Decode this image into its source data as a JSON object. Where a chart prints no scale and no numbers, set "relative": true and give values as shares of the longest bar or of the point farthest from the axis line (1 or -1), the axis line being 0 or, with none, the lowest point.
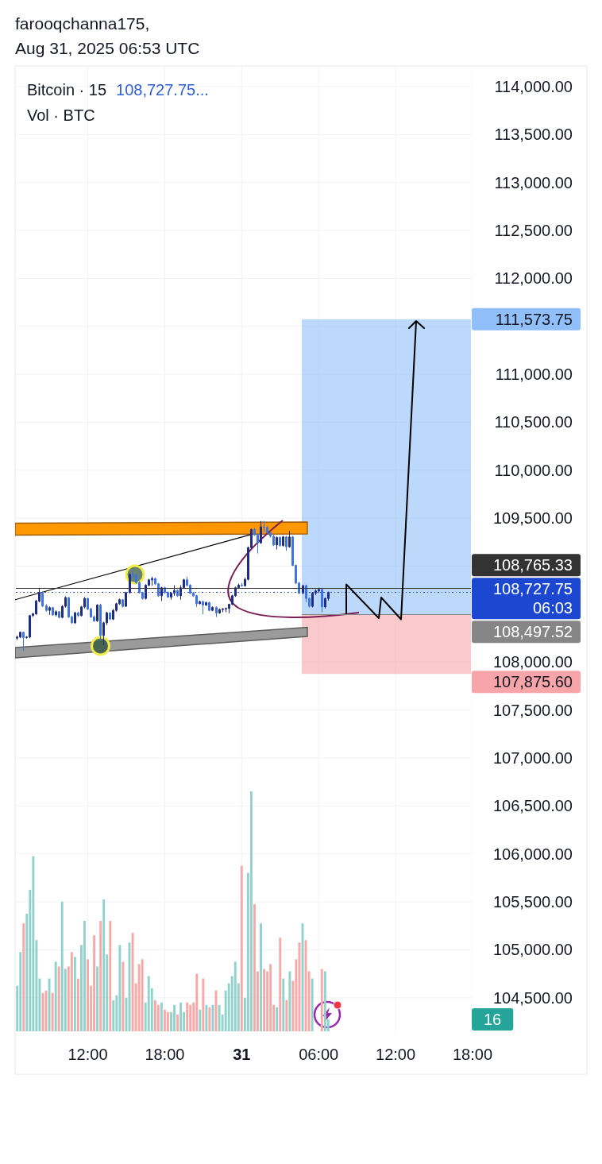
{
  "chart_data": [
    {
      "type": "candlestick",
      "title": "Bitcoin · 15",
      "subtitle": "108,727.75...",
      "grid": true,
      "annotations": [
        "farooqchanna175,",
        "Aug 31, 2025 06:53 UTC"
      ],
      "xlim": [
        "2025-08-30T06:20",
        "2025-08-31T18:00"
      ],
      "xticks": [
        {
          "value": "2025-08-30T12:00",
          "label": "12:00"
        },
        {
          "value": "2025-08-30T18:00",
          "label": "18:00"
        },
        {
          "value": "2025-08-31T00:00",
          "label": "31"
        },
        {
          "value": "2025-08-31T06:00",
          "label": "06:00"
        },
        {
          "value": "2025-08-31T12:00",
          "label": "12:00"
        },
        {
          "value": "2025-08-31T18:00",
          "label": "18:00"
        }
      ],
      "ylim": [
        104150,
        114215
      ],
      "yticks": [
        {
          "value": 104500,
          "label": "104,500.00"
        },
        {
          "value": 105000,
          "label": "105,000.00"
        },
        {
          "value": 105500,
          "label": "105,500.00"
        },
        {
          "value": 106000,
          "label": "106,000.00"
        },
        {
          "value": 106500,
          "label": "106,500.00"
        },
        {
          "value": 107000,
          "label": "107,000.00"
        },
        {
          "value": 107500,
          "label": "107,500.00"
        },
        {
          "value": 108000,
          "label": "108,000.00"
        },
        {
          "value": 108500,
          "label": null
        },
        {
          "value": 109000,
          "label": null
        },
        {
          "value": 109500,
          "label": "109,500.00"
        },
        {
          "value": 110000,
          "label": "110,000.00"
        },
        {
          "value": 110500,
          "label": "110,500.00"
        },
        {
          "value": 111000,
          "label": "111,000.00"
        },
        {
          "value": 111500,
          "label": null
        },
        {
          "value": 112000,
          "label": "112,000.00"
        },
        {
          "value": 112500,
          "label": "112,500.00"
        },
        {
          "value": 113000,
          "label": "113,000.00"
        },
        {
          "value": 113500,
          "label": "113,500.00"
        },
        {
          "value": 114000,
          "label": "114,000.00"
        }
      ],
      "x": [
        "2025-08-30T06:30",
        "2025-08-30T06:45",
        "2025-08-30T07:00",
        "2025-08-30T07:15",
        "2025-08-30T07:30",
        "2025-08-30T07:45",
        "2025-08-30T08:00",
        "2025-08-30T08:15",
        "2025-08-30T08:30",
        "2025-08-30T08:45",
        "2025-08-30T09:00",
        "2025-08-30T09:15",
        "2025-08-30T09:30",
        "2025-08-30T09:45",
        "2025-08-30T10:00",
        "2025-08-30T10:15",
        "2025-08-30T10:30",
        "2025-08-30T10:45",
        "2025-08-30T11:00",
        "2025-08-30T11:15",
        "2025-08-30T11:30",
        "2025-08-30T11:45",
        "2025-08-30T12:00",
        "2025-08-30T12:15",
        "2025-08-30T12:30",
        "2025-08-30T12:45",
        "2025-08-30T13:00",
        "2025-08-30T13:15",
        "2025-08-30T13:30",
        "2025-08-30T13:45",
        "2025-08-30T14:00",
        "2025-08-30T14:15",
        "2025-08-30T14:30",
        "2025-08-30T14:45",
        "2025-08-30T15:00",
        "2025-08-30T15:15",
        "2025-08-30T15:30",
        "2025-08-30T15:45",
        "2025-08-30T16:00",
        "2025-08-30T16:15",
        "2025-08-30T16:30",
        "2025-08-30T16:45",
        "2025-08-30T17:00",
        "2025-08-30T17:15",
        "2025-08-30T17:30",
        "2025-08-30T17:45",
        "2025-08-30T18:00",
        "2025-08-30T18:15",
        "2025-08-30T18:30",
        "2025-08-30T18:45",
        "2025-08-30T19:00",
        "2025-08-30T19:15",
        "2025-08-30T19:30",
        "2025-08-30T19:45",
        "2025-08-30T20:00",
        "2025-08-30T20:15",
        "2025-08-30T20:30",
        "2025-08-30T20:45",
        "2025-08-30T21:00",
        "2025-08-30T21:15",
        "2025-08-30T21:30",
        "2025-08-30T21:45",
        "2025-08-30T22:00",
        "2025-08-30T22:15",
        "2025-08-30T22:30",
        "2025-08-30T22:45",
        "2025-08-30T23:00",
        "2025-08-30T23:15",
        "2025-08-30T23:30",
        "2025-08-30T23:45",
        "2025-08-31T00:00",
        "2025-08-31T00:15",
        "2025-08-31T00:30",
        "2025-08-31T00:45",
        "2025-08-31T01:00",
        "2025-08-31T01:15",
        "2025-08-31T01:30",
        "2025-08-31T01:45",
        "2025-08-31T02:00",
        "2025-08-31T02:15",
        "2025-08-31T02:30",
        "2025-08-31T02:45",
        "2025-08-31T03:00",
        "2025-08-31T03:15",
        "2025-08-31T03:30",
        "2025-08-31T03:45",
        "2025-08-31T04:00",
        "2025-08-31T04:15",
        "2025-08-31T04:30",
        "2025-08-31T04:45",
        "2025-08-31T05:00",
        "2025-08-31T05:15",
        "2025-08-31T05:30",
        "2025-08-31T05:45",
        "2025-08-31T06:00",
        "2025-08-31T06:15",
        "2025-08-31T06:30",
        "2025-08-31T06:45"
      ],
      "ohlc": [
        [
          108249,
          108277,
          108230,
          108260
        ],
        [
          108260,
          108318,
          108249,
          108310
        ],
        [
          108310,
          108316,
          108117,
          108255
        ],
        [
          108255,
          108271,
          108244,
          108260
        ],
        [
          108260,
          108492,
          108249,
          108484
        ],
        [
          108484,
          108512,
          108470,
          108503
        ],
        [
          108503,
          108650,
          108492,
          108636
        ],
        [
          108636,
          108774,
          108622,
          108719
        ],
        [
          108719,
          108733,
          108575,
          108586
        ],
        [
          108586,
          108603,
          108525,
          108539
        ],
        [
          108539,
          108581,
          108492,
          108567
        ],
        [
          108567,
          108575,
          108484,
          108492
        ],
        [
          108492,
          108539,
          108476,
          108525
        ],
        [
          108525,
          108531,
          108456,
          108465
        ],
        [
          108465,
          108592,
          108456,
          108581
        ],
        [
          108581,
          108685,
          108567,
          108672
        ],
        [
          108672,
          108677,
          108459,
          108470
        ],
        [
          108470,
          108484,
          108398,
          108409
        ],
        [
          108409,
          108525,
          108398,
          108512
        ],
        [
          108512,
          108525,
          108470,
          108484
        ],
        [
          108484,
          108586,
          108476,
          108575
        ],
        [
          108575,
          108677,
          108559,
          108663
        ],
        [
          108663,
          108669,
          108542,
          108553
        ],
        [
          108553,
          108564,
          108459,
          108470
        ],
        [
          108470,
          108484,
          108420,
          108429
        ],
        [
          108429,
          108603,
          108420,
          108594
        ],
        [
          108594,
          108608,
          108227,
          108277
        ],
        [
          108277,
          108420,
          108177,
          108409
        ],
        [
          108409,
          108525,
          108387,
          108512
        ],
        [
          108512,
          108520,
          108437,
          108448
        ],
        [
          108448,
          108553,
          108437,
          108539
        ],
        [
          108539,
          108619,
          108525,
          108608
        ],
        [
          108608,
          108663,
          108597,
          108650
        ],
        [
          108650,
          108658,
          108569,
          108581
        ],
        [
          108581,
          108733,
          108575,
          108724
        ],
        [
          108724,
          108926,
          108713,
          108912
        ],
        [
          108912,
          108939,
          108879,
          108906
        ],
        [
          108906,
          108917,
          108815,
          108829
        ],
        [
          108829,
          108843,
          108713,
          108724
        ],
        [
          108724,
          108733,
          108650,
          108663
        ],
        [
          108663,
          108812,
          108652,
          108801
        ],
        [
          108801,
          108868,
          108790,
          108857
        ],
        [
          108857,
          108890,
          108796,
          108870
        ],
        [
          108870,
          108879,
          108801,
          108815
        ],
        [
          108815,
          108824,
          108680,
          108691
        ],
        [
          108691,
          108785,
          108636,
          108774
        ],
        [
          108774,
          108785,
          108713,
          108724
        ],
        [
          108724,
          108735,
          108669,
          108677
        ],
        [
          108677,
          108730,
          108650,
          108719
        ],
        [
          108719,
          108801,
          108691,
          108746
        ],
        [
          108746,
          108757,
          108680,
          108691
        ],
        [
          108691,
          108801,
          108650,
          108774
        ],
        [
          108774,
          108868,
          108763,
          108857
        ],
        [
          108857,
          108890,
          108790,
          108801
        ],
        [
          108801,
          108812,
          108708,
          108719
        ],
        [
          108719,
          108730,
          108680,
          108691
        ],
        [
          108691,
          108702,
          108575,
          108608
        ],
        [
          108608,
          108641,
          108603,
          108630
        ],
        [
          108630,
          108641,
          108498,
          108594
        ],
        [
          108594,
          108630,
          108586,
          108619
        ],
        [
          108619,
          108630,
          108531,
          108539
        ],
        [
          108539,
          108581,
          108531,
          108569
        ],
        [
          108569,
          108581,
          108470,
          108512
        ],
        [
          108512,
          108559,
          108503,
          108547
        ],
        [
          108547,
          108564,
          108520,
          108553
        ],
        [
          108553,
          108569,
          108520,
          108559
        ],
        [
          108559,
          108608,
          108509,
          108603
        ],
        [
          108603,
          108702,
          108592,
          108691
        ],
        [
          108691,
          108785,
          108680,
          108774
        ],
        [
          108774,
          108818,
          108763,
          108801
        ],
        [
          108801,
          108824,
          108785,
          108796
        ],
        [
          108796,
          108879,
          108785,
          108862
        ],
        [
          108862,
          109205,
          108851,
          109193
        ],
        [
          109193,
          109392,
          109182,
          109381
        ],
        [
          109381,
          109398,
          109315,
          109326
        ],
        [
          109326,
          109340,
          109133,
          109243
        ],
        [
          109243,
          109470,
          109232,
          109409
        ],
        [
          109409,
          109470,
          109354,
          109403
        ],
        [
          109403,
          109420,
          109337,
          109348
        ],
        [
          109348,
          109359,
          109298,
          109312
        ],
        [
          109312,
          109326,
          109210,
          109221
        ],
        [
          109221,
          109309,
          109174,
          109298
        ],
        [
          109298,
          109309,
          109202,
          109216
        ],
        [
          109216,
          109315,
          109202,
          109304
        ],
        [
          109304,
          109315,
          109160,
          109202
        ],
        [
          109202,
          109367,
          109193,
          109304
        ],
        [
          109304,
          109315,
          109000,
          109008
        ],
        [
          109008,
          109017,
          108812,
          108824
        ],
        [
          108824,
          108835,
          108708,
          108719
        ],
        [
          108719,
          108807,
          108708,
          108796
        ],
        [
          108796,
          108807,
          108622,
          108663
        ],
        [
          108663,
          108674,
          108569,
          108581
        ],
        [
          108581,
          108730,
          108569,
          108719
        ],
        [
          108719,
          108757,
          108697,
          108741
        ],
        [
          108741,
          108774,
          108719,
          108757
        ],
        [
          108757,
          108774,
          108520,
          108575
        ],
        [
          108575,
          108674,
          108559,
          108663
        ],
        [
          108663,
          108735,
          108641,
          108727.75
        ]
      ],
      "colors": [
        "#1e2c84",
        "#1e2c84",
        "#3f72e2",
        "#1e2c84",
        "#1e2c84",
        "#1e2c84",
        "#1e2c84",
        "#1e2c84",
        "#3f72e2",
        "#3f72e2",
        "#1e2c84",
        "#3f72e2",
        "#1e2c84",
        "#3f72e2",
        "#1e2c84",
        "#1e2c84",
        "#3f72e2",
        "#3f72e2",
        "#1e2c84",
        "#3f72e2",
        "#1e2c84",
        "#1e2c84",
        "#3f72e2",
        "#3f72e2",
        "#3f72e2",
        "#1e2c84",
        "#3f72e2",
        "#1e2c84",
        "#1e2c84",
        "#3f72e2",
        "#1e2c84",
        "#1e2c84",
        "#1e2c84",
        "#3f72e2",
        "#1e2c84",
        "#1e2c84",
        "#3f72e2",
        "#3f72e2",
        "#3f72e2",
        "#3f72e2",
        "#1e2c84",
        "#1e2c84",
        "#1e2c84",
        "#3f72e2",
        "#3f72e2",
        "#1e2c84",
        "#3f72e2",
        "#3f72e2",
        "#1e2c84",
        "#1e2c84",
        "#3f72e2",
        "#1e2c84",
        "#1e2c84",
        "#3f72e2",
        "#3f72e2",
        "#3f72e2",
        "#3f72e2",
        "#1e2c84",
        "#3f72e2",
        "#1e2c84",
        "#3f72e2",
        "#1e2c84",
        "#3f72e2",
        "#1e2c84",
        "#1e2c84",
        "#1e2c84",
        "#1e2c84",
        "#1e2c84",
        "#1e2c84",
        "#1e2c84",
        "#3f72e2",
        "#1e2c84",
        "#1e2c84",
        "#1e2c84",
        "#3f72e2",
        "#3f72e2",
        "#1e2c84",
        "#3f72e2",
        "#3f72e2",
        "#3f72e2",
        "#3f72e2",
        "#1e2c84",
        "#3f72e2",
        "#1e2c84",
        "#3f72e2",
        "#1e2c84",
        "#3f72e2",
        "#3f72e2",
        "#3f72e2",
        "#1e2c84",
        "#3f72e2",
        "#3f72e2",
        "#1e2c84",
        "#1e2c84",
        "#1e2c84",
        "#3f72e2",
        "#1e2c84",
        "#1e2c84"
      ],
      "bands": [
        {
          "axis": "y",
          "from": 108497.52,
          "to": 111573.75,
          "color": "#90bff9",
          "label": "111,573.75"
        },
        {
          "axis": "y",
          "from": 107875.6,
          "to": 108497.52,
          "color": "#f7a5a8",
          "label": "107,875.60"
        }
      ],
      "ref_lines": [
        {
          "axis": "y",
          "value": 108765.33,
          "label": "108,765.33",
          "color": "#333333",
          "line_style": "solid"
        },
        {
          "axis": "y",
          "value": 108727.75,
          "label": "108,727.75\n06:03",
          "color": "#1c47d1",
          "line_style": "dotted"
        },
        {
          "axis": "y",
          "value": 108497.52,
          "label": "108,497.52",
          "color": "#868686",
          "line_style": "solid"
        }
      ],
      "series": [
        {
          "type": "line",
          "x": [
            "2025-08-30T06:20",
            "2025-08-31T00:45"
          ],
          "values": [
            108650,
            109330
          ],
          "color": "#000000"
        }
      ]
    },
    {
      "type": "bar",
      "relative": true,
      "title": "Vol · BTC",
      "annotations": [
        "16"
      ],
      "xlim": [
        "2025-08-30T06:20",
        "2025-08-31T18:00"
      ],
      "x": [
        "2025-08-30T06:30",
        "2025-08-30T06:45",
        "2025-08-30T07:00",
        "2025-08-30T07:15",
        "2025-08-30T07:30",
        "2025-08-30T07:45",
        "2025-08-30T08:00",
        "2025-08-30T08:15",
        "2025-08-30T08:30",
        "2025-08-30T08:45",
        "2025-08-30T09:00",
        "2025-08-30T09:15",
        "2025-08-30T09:30",
        "2025-08-30T09:45",
        "2025-08-30T10:00",
        "2025-08-30T10:15",
        "2025-08-30T10:30",
        "2025-08-30T10:45",
        "2025-08-30T11:00",
        "2025-08-30T11:15",
        "2025-08-30T11:30",
        "2025-08-30T11:45",
        "2025-08-30T12:00",
        "2025-08-30T12:15",
        "2025-08-30T12:30",
        "2025-08-30T12:45",
        "2025-08-30T13:00",
        "2025-08-30T13:15",
        "2025-08-30T13:30",
        "2025-08-30T13:45",
        "2025-08-30T14:00",
        "2025-08-30T14:15",
        "2025-08-30T14:30",
        "2025-08-30T14:45",
        "2025-08-30T15:00",
        "2025-08-30T15:15",
        "2025-08-30T15:30",
        "2025-08-30T15:45",
        "2025-08-30T16:00",
        "2025-08-30T16:15",
        "2025-08-30T16:30",
        "2025-08-30T16:45",
        "2025-08-30T17:00",
        "2025-08-30T17:15",
        "2025-08-30T17:30",
        "2025-08-30T17:45",
        "2025-08-30T18:00",
        "2025-08-30T18:15",
        "2025-08-30T18:30",
        "2025-08-30T18:45",
        "2025-08-30T19:00",
        "2025-08-30T19:15",
        "2025-08-30T19:30",
        "2025-08-30T19:45",
        "2025-08-30T20:00",
        "2025-08-30T20:15",
        "2025-08-30T20:30",
        "2025-08-30T20:45",
        "2025-08-30T21:00",
        "2025-08-30T21:15",
        "2025-08-30T21:30",
        "2025-08-30T21:45",
        "2025-08-30T22:00",
        "2025-08-30T22:15",
        "2025-08-30T22:30",
        "2025-08-30T22:45",
        "2025-08-30T23:00",
        "2025-08-30T23:15",
        "2025-08-30T23:30",
        "2025-08-30T23:45",
        "2025-08-31T00:00",
        "2025-08-31T00:15",
        "2025-08-31T00:30",
        "2025-08-31T00:45",
        "2025-08-31T01:00",
        "2025-08-31T01:15",
        "2025-08-31T01:30",
        "2025-08-31T01:45",
        "2025-08-31T02:00",
        "2025-08-31T02:15",
        "2025-08-31T02:30",
        "2025-08-31T02:45",
        "2025-08-31T03:00",
        "2025-08-31T03:15",
        "2025-08-31T03:30",
        "2025-08-31T03:45",
        "2025-08-31T04:00",
        "2025-08-31T04:15",
        "2025-08-31T04:30",
        "2025-08-31T04:45",
        "2025-08-31T05:00",
        "2025-08-31T05:15",
        "2025-08-31T05:30",
        "2025-08-31T05:45",
        "2025-08-31T06:00",
        "2025-08-31T06:15",
        "2025-08-31T06:30",
        "2025-08-31T06:45"
      ],
      "values": [
        0.19,
        0.33,
        0.45,
        0.49,
        0.59,
        0.73,
        0.38,
        0.22,
        0.16,
        0.17,
        0.22,
        0.16,
        0.29,
        0.27,
        0.54,
        0.26,
        0.27,
        0.33,
        0.31,
        0.22,
        0.36,
        0.46,
        0.3,
        0.19,
        0.4,
        0.27,
        0.46,
        0.55,
        0.32,
        0.46,
        0.13,
        0.15,
        0.36,
        0.29,
        0.14,
        0.37,
        0.41,
        0.2,
        0.28,
        0.3,
        0.12,
        0.23,
        0.18,
        0.13,
        0.11,
        0.12,
        0.09,
        0.08,
        0.08,
        0.11,
        0.07,
        0.12,
        0.08,
        0.12,
        0.11,
        0.12,
        0.24,
        0.09,
        0.22,
        0.11,
        0.1,
        0.11,
        0.17,
        0.11,
        0.07,
        0.17,
        0.2,
        0.23,
        0.29,
        0.2,
        0.69,
        0.14,
        0.66,
        1,
        0.53,
        0.25,
        0.45,
        0.26,
        0.25,
        0.28,
        0.11,
        0.1,
        0.39,
        0.22,
        0.13,
        0.25,
        0.21,
        0.3,
        0.37,
        0.45,
        0.38,
        0.25,
        0.22,
        null,
        null,
        0.26,
        0.25,
        0.05
      ],
      "colors": [
        "#92d2cc",
        "#92d2cc",
        "#f7a9a7",
        "#92d2cc",
        "#92d2cc",
        "#92d2cc",
        "#92d2cc",
        "#92d2cc",
        "#f7a9a7",
        "#f7a9a7",
        "#92d2cc",
        "#f7a9a7",
        "#92d2cc",
        "#f7a9a7",
        "#92d2cc",
        "#92d2cc",
        "#f7a9a7",
        "#f7a9a7",
        "#92d2cc",
        "#f7a9a7",
        "#92d2cc",
        "#92d2cc",
        "#f7a9a7",
        "#f7a9a7",
        "#f7a9a7",
        "#92d2cc",
        "#f7a9a7",
        "#92d2cc",
        "#92d2cc",
        "#f7a9a7",
        "#92d2cc",
        "#92d2cc",
        "#92d2cc",
        "#f7a9a7",
        "#92d2cc",
        "#92d2cc",
        "#f7a9a7",
        "#f7a9a7",
        "#f7a9a7",
        "#f7a9a7",
        "#92d2cc",
        "#92d2cc",
        "#92d2cc",
        "#f7a9a7",
        "#f7a9a7",
        "#92d2cc",
        "#f7a9a7",
        "#f7a9a7",
        "#92d2cc",
        "#92d2cc",
        "#f7a9a7",
        "#92d2cc",
        "#92d2cc",
        "#f7a9a7",
        "#f7a9a7",
        "#f7a9a7",
        "#f7a9a7",
        "#92d2cc",
        "#f7a9a7",
        "#92d2cc",
        "#f7a9a7",
        "#92d2cc",
        "#f7a9a7",
        "#92d2cc",
        "#92d2cc",
        "#92d2cc",
        "#92d2cc",
        "#92d2cc",
        "#92d2cc",
        "#92d2cc",
        "#f7a9a7",
        "#92d2cc",
        "#92d2cc",
        "#92d2cc",
        "#f7a9a7",
        "#f7a9a7",
        "#92d2cc",
        "#f7a9a7",
        "#f7a9a7",
        "#f7a9a7",
        "#f7a9a7",
        "#92d2cc",
        "#f7a9a7",
        "#92d2cc",
        "#f7a9a7",
        "#92d2cc",
        "#f7a9a7",
        "#f7a9a7",
        "#f7a9a7",
        "#92d2cc",
        "#f7a9a7",
        "#f7a9a7",
        "#92d2cc",
        null,
        null,
        "#f7a9a7",
        "#92d2cc",
        "#92d2cc"
      ]
    }
  ]
}
